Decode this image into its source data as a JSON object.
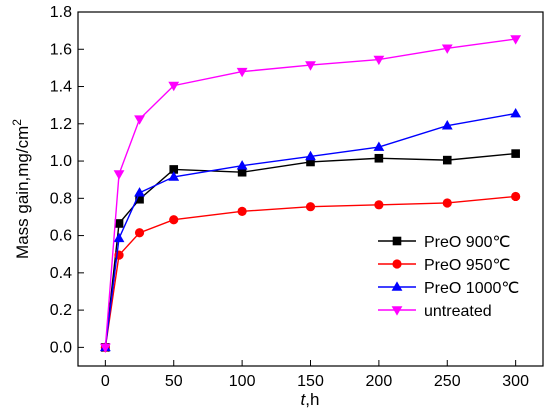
{
  "chart_data": {
    "type": "line",
    "xlabel_italic": "t",
    "xlabel_rest": ",h",
    "ylabel_main": "Mass gain,mg/cm",
    "ylabel_sup": "2",
    "xlim": [
      -20,
      320
    ],
    "ylim": [
      -0.1,
      1.8
    ],
    "xticks": [
      0,
      50,
      100,
      150,
      200,
      250,
      300
    ],
    "yticks": [
      0.0,
      0.2,
      0.4,
      0.6,
      0.8,
      1.0,
      1.2,
      1.4,
      1.6,
      1.8
    ],
    "ytick_labels": [
      "0.0",
      "0.2",
      "0.4",
      "0.6",
      "0.8",
      "1.0",
      "1.2",
      "1.4",
      "1.6",
      "1.8"
    ],
    "legend_position": "lower-right",
    "series": [
      {
        "name": "PreO 900℃",
        "color": "#000000",
        "marker": "square",
        "x": [
          0,
          10,
          25,
          50,
          100,
          150,
          200,
          250,
          300
        ],
        "y": [
          0.0,
          0.665,
          0.795,
          0.955,
          0.94,
          0.995,
          1.015,
          1.005,
          1.04
        ]
      },
      {
        "name": "PreO 950℃",
        "color": "#ff0000",
        "marker": "circle",
        "x": [
          0,
          10,
          25,
          50,
          100,
          150,
          200,
          250,
          300
        ],
        "y": [
          0.0,
          0.495,
          0.615,
          0.685,
          0.73,
          0.755,
          0.765,
          0.775,
          0.81
        ]
      },
      {
        "name": "PreO 1000℃",
        "color": "#0000ff",
        "marker": "triangle-up",
        "x": [
          0,
          10,
          25,
          50,
          100,
          150,
          200,
          250,
          300
        ],
        "y": [
          0.0,
          0.585,
          0.83,
          0.915,
          0.975,
          1.025,
          1.075,
          1.19,
          1.255
        ]
      },
      {
        "name": "untreated",
        "color": "#ff00ff",
        "marker": "triangle-down",
        "x": [
          0,
          10,
          25,
          50,
          100,
          150,
          200,
          250,
          300
        ],
        "y": [
          0.0,
          0.93,
          1.225,
          1.405,
          1.48,
          1.515,
          1.545,
          1.605,
          1.655
        ]
      }
    ]
  }
}
